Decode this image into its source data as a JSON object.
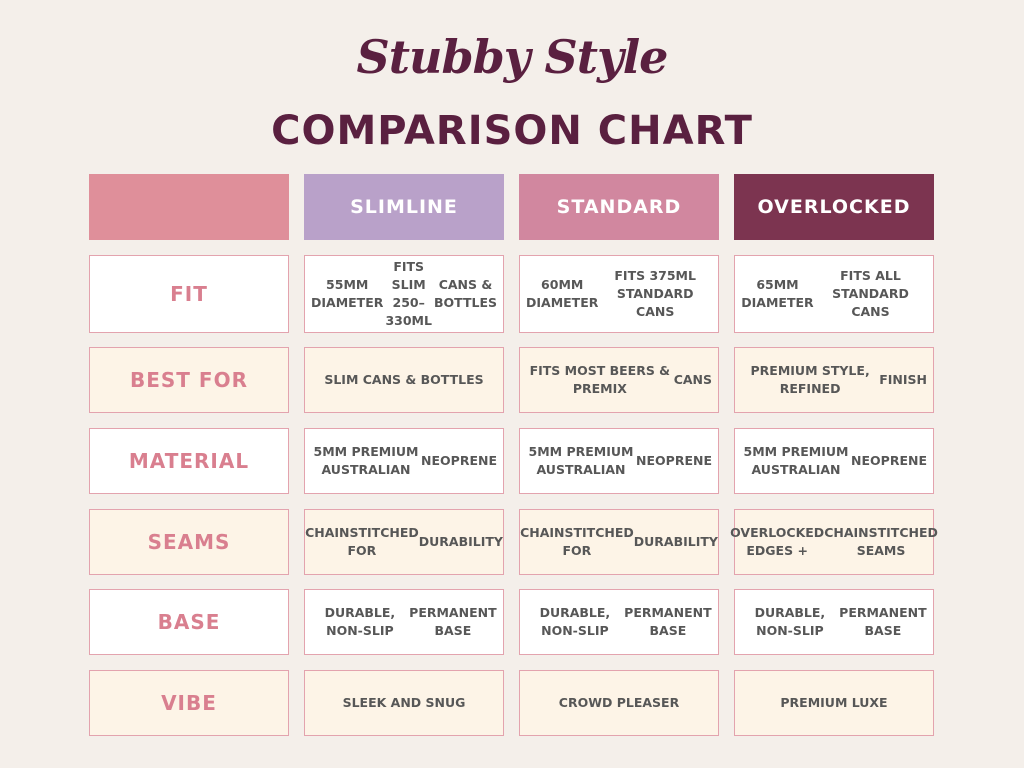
{
  "title": {
    "script": "Stubby Style",
    "main": "COMPARISON CHART"
  },
  "colors": {
    "background": "#f4efea",
    "title": "#5a2040",
    "header_blank": "#df8f9a",
    "header_slimline": "#b9a1c9",
    "header_standard": "#d1879f",
    "header_overlocked": "#7c3450",
    "row_label": "#d97f8f",
    "row_white": "#ffffff",
    "row_cream": "#fdf4e7",
    "cell_border": "#e3a3ae"
  },
  "columns": [
    "SLIMLINE",
    "STANDARD",
    "OVERLOCKED"
  ],
  "rows": [
    {
      "label": "FIT",
      "slimline": [
        "55MM DIAMETER",
        "FITS SLIM 250–330ML",
        "CANS & BOTTLES"
      ],
      "standard": [
        "60MM DIAMETER",
        "FITS 375ML STANDARD CANS"
      ],
      "overlocked": [
        "65MM DIAMETER",
        "FITS ALL STANDARD CANS"
      ]
    },
    {
      "label": "BEST FOR",
      "slimline": [
        "SLIM CANS & BOTTLES"
      ],
      "standard": [
        "FITS MOST BEERS & PREMIX",
        "CANS"
      ],
      "overlocked": [
        "PREMIUM STYLE, REFINED",
        "FINISH"
      ]
    },
    {
      "label": "MATERIAL",
      "slimline": [
        "5MM PREMIUM AUSTRALIAN",
        "NEOPRENE"
      ],
      "standard": [
        "5MM PREMIUM AUSTRALIAN",
        "NEOPRENE"
      ],
      "overlocked": [
        "5MM PREMIUM AUSTRALIAN",
        "NEOPRENE"
      ]
    },
    {
      "label": "SEAMS",
      "slimline": [
        "CHAINSTITCHED FOR",
        "DURABILITY"
      ],
      "standard": [
        "CHAINSTITCHED FOR",
        "DURABILITY"
      ],
      "overlocked": [
        "OVERLOCKED EDGES +",
        "CHAINSTITCHED SEAMS"
      ]
    },
    {
      "label": "BASE",
      "slimline": [
        "DURABLE, NON-SLIP",
        "PERMANENT BASE"
      ],
      "standard": [
        "DURABLE, NON-SLIP",
        "PERMANENT BASE"
      ],
      "overlocked": [
        "DURABLE, NON-SLIP",
        "PERMANENT BASE"
      ]
    },
    {
      "label": "VIBE",
      "slimline": [
        "SLEEK AND SNUG"
      ],
      "standard": [
        "CROWD PLEASER"
      ],
      "overlocked": [
        "PREMIUM LUXE"
      ]
    }
  ]
}
